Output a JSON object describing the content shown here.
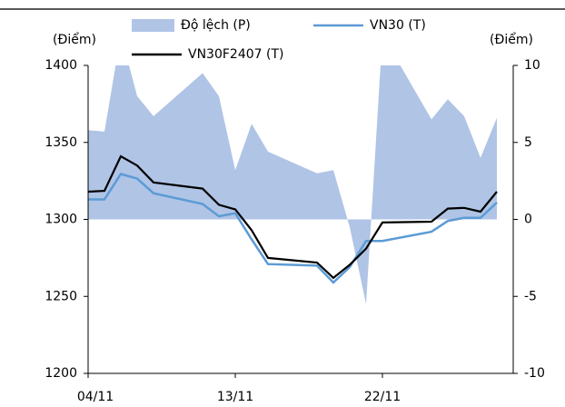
{
  "chart_data": {
    "type": "line",
    "y_label": "(Điểm)",
    "y2_label": "(Điểm)",
    "x": [
      "04/11",
      "05/11",
      "06/11",
      "07/11",
      "08/11",
      "11/11",
      "12/11",
      "13/11",
      "14/11",
      "15/11",
      "18/11",
      "19/11",
      "20/11",
      "21/11",
      "22/11",
      "25/11",
      "26/11",
      "27/11",
      "28/11",
      "29/11"
    ],
    "xlim": [
      "04/11",
      "30/11"
    ],
    "xticks": [
      "04/11",
      "13/11",
      "22/11"
    ],
    "ylim": [
      1200,
      1400
    ],
    "yticks": [
      1200,
      1250,
      1300,
      1350,
      1400
    ],
    "y2lim": [
      -10,
      10
    ],
    "y2ticks": [
      -10,
      -5,
      0,
      5,
      10
    ],
    "series": [
      {
        "name": "Độ lệch (P)",
        "type": "area",
        "axis": "y2",
        "color": "#b0c4e6",
        "values": [
          5.8,
          5.7,
          12,
          8,
          6.7,
          9.5,
          8,
          3.2,
          6.2,
          4.4,
          3,
          3.2,
          -0.5,
          -5.5,
          12,
          6.5,
          7.8,
          6.7,
          4,
          6.6
        ]
      },
      {
        "name": "VN30 (T)",
        "type": "line",
        "axis": "y",
        "color": "#5b9bd5",
        "values": [
          1313,
          1313,
          1329.5,
          1326.5,
          1317,
          1310,
          1302,
          1304,
          1287,
          1271,
          1270,
          1259,
          1269,
          1286,
          1286,
          1292,
          1299,
          1301,
          1301,
          1311
        ]
      },
      {
        "name": "VN30F2407 (T)",
        "type": "line",
        "axis": "y",
        "color": "#000000",
        "values": [
          1318,
          1318.5,
          1341,
          1335,
          1324,
          1320,
          1309.5,
          1306.5,
          1293,
          1275,
          1272,
          1262,
          1270.5,
          1281,
          1298,
          1298.5,
          1307,
          1307.5,
          1305,
          1318
        ]
      }
    ]
  }
}
